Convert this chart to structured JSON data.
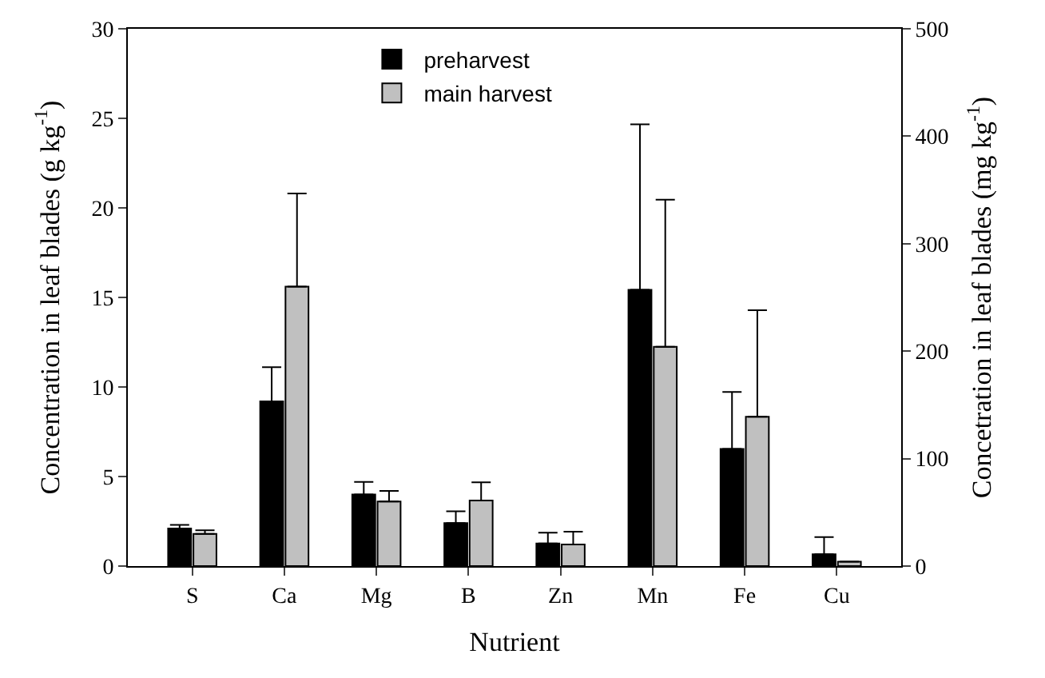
{
  "chart_data": {
    "type": "bar",
    "xlabel": "Nutrient",
    "ylabel": "Concentration in leaf blades (g kg$^{-1}$)",
    "y2label": "Concetration in leaf blades (mg kg$^{-1}$)",
    "categories": [
      "S",
      "Ca",
      "Mg",
      "B",
      "Zn",
      "Mn",
      "Fe",
      "Cu"
    ],
    "series": [
      {
        "name": "preharvest",
        "color": "#000000",
        "values": [
          2.1,
          9.2,
          4.0,
          null,
          null,
          null,
          null,
          null
        ],
        "errors": [
          [
            2.1,
            2.3
          ],
          [
            9.2,
            11.1
          ],
          [
            4.0,
            4.7
          ],
          null,
          null,
          null,
          null,
          null
        ]
      },
      {
        "name": "main harvest",
        "color": "#c0c0c0",
        "values": [
          1.8,
          15.6,
          3.6,
          null,
          null,
          null,
          null,
          null
        ],
        "errors": [
          [
            1.8,
            2.0
          ],
          [
            15.6,
            20.8
          ],
          [
            3.6,
            4.2
          ],
          null,
          null,
          null,
          null,
          null
        ]
      },
      {
        "color": "#000000",
        "axis": "y2",
        "values": [
          null,
          null,
          null,
          40,
          21,
          257,
          109,
          11
        ],
        "errors": [
          null,
          null,
          null,
          [
            40,
            51
          ],
          [
            21,
            31
          ],
          [
            257,
            411
          ],
          [
            109,
            162
          ],
          [
            11,
            27
          ]
        ]
      },
      {
        "color": "#c0c0c0",
        "axis": "y2",
        "values": [
          null,
          null,
          null,
          61,
          20,
          204,
          139,
          4
        ],
        "errors": [
          null,
          null,
          null,
          [
            61,
            78
          ],
          [
            20,
            32
          ],
          [
            204,
            341
          ],
          [
            139,
            238
          ],
          null
        ]
      }
    ],
    "ylim": [
      0,
      30
    ],
    "yticks": [
      0,
      5,
      10,
      15,
      20,
      25,
      30
    ],
    "y2lim": [
      0,
      500
    ],
    "y2ticks": [
      0,
      100,
      200,
      300,
      400,
      500
    ],
    "legend": "top"
  }
}
